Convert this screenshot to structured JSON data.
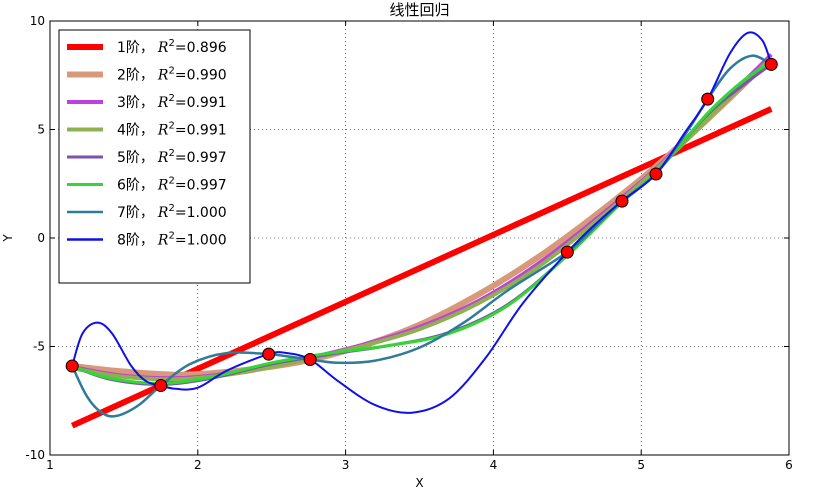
{
  "chart_data": {
    "type": "line",
    "title": "线性回归",
    "xlabel": "X",
    "ylabel": "Y",
    "xlim": [
      1,
      6
    ],
    "ylim": [
      -10,
      10
    ],
    "xticks": [
      1,
      2,
      3,
      4,
      5,
      6
    ],
    "yticks": [
      -10,
      -5,
      0,
      5,
      10
    ],
    "grid": true,
    "legend_placement": "top-left",
    "points": {
      "color": "#ff0000",
      "x": [
        1.15,
        1.75,
        2.48,
        2.76,
        4.5,
        4.87,
        5.1,
        5.45,
        5.88
      ],
      "y": [
        -5.9,
        -6.8,
        -5.35,
        -5.6,
        -0.65,
        1.7,
        2.95,
        6.4,
        8.0
      ]
    },
    "series": [
      {
        "name": "1阶",
        "r2": "0.896",
        "color": "#ff0000",
        "width": 6,
        "x": [
          1.15,
          5.88
        ],
        "y": [
          -8.65,
          5.95
        ]
      },
      {
        "name": "2阶",
        "r2": "0.990",
        "color": "#d8987a",
        "width": 6,
        "x": [
          1.15,
          1.5,
          1.9,
          2.3,
          2.7,
          3.1,
          3.5,
          3.9,
          4.3,
          4.7,
          5.1,
          5.5,
          5.88
        ],
        "y": [
          -5.9,
          -6.15,
          -6.3,
          -6.1,
          -5.7,
          -5.0,
          -4.0,
          -2.6,
          -0.9,
          1.1,
          3.3,
          5.8,
          8.3
        ]
      },
      {
        "name": "3阶",
        "r2": "0.991",
        "color": "#bf40dc",
        "width": 4,
        "x": [
          1.15,
          1.5,
          1.9,
          2.3,
          2.7,
          3.1,
          3.5,
          3.9,
          4.3,
          4.7,
          5.1,
          5.5,
          5.88
        ],
        "y": [
          -5.95,
          -6.35,
          -6.45,
          -6.15,
          -5.6,
          -4.95,
          -4.1,
          -2.9,
          -1.2,
          0.9,
          3.2,
          5.9,
          8.45
        ]
      },
      {
        "name": "4阶",
        "r2": "0.991",
        "color": "#8fb050",
        "width": 4,
        "x": [
          1.15,
          1.5,
          1.9,
          2.3,
          2.7,
          3.1,
          3.5,
          3.9,
          4.3,
          4.7,
          5.1,
          5.5,
          5.88
        ],
        "y": [
          -6.0,
          -6.4,
          -6.5,
          -6.2,
          -5.65,
          -5.0,
          -4.2,
          -3.0,
          -1.35,
          0.8,
          3.15,
          5.8,
          8.3
        ]
      },
      {
        "name": "5阶",
        "r2": "0.997",
        "color": "#7a52b2",
        "width": 3,
        "x": [
          1.15,
          1.4,
          1.75,
          2.1,
          2.5,
          2.9,
          3.3,
          3.7,
          4.1,
          4.5,
          4.87,
          5.1,
          5.45,
          5.7,
          5.88
        ],
        "y": [
          -5.9,
          -6.5,
          -6.75,
          -6.45,
          -5.8,
          -5.35,
          -4.95,
          -4.35,
          -3.05,
          -0.8,
          1.65,
          3.0,
          5.7,
          7.1,
          8.0
        ]
      },
      {
        "name": "6阶",
        "r2": "0.997",
        "color": "#33d633",
        "width": 3,
        "x": [
          1.15,
          1.4,
          1.75,
          2.1,
          2.5,
          2.9,
          3.3,
          3.7,
          4.1,
          4.5,
          4.87,
          5.1,
          5.45,
          5.7,
          5.88
        ],
        "y": [
          -5.9,
          -6.45,
          -6.7,
          -6.4,
          -5.75,
          -5.3,
          -4.95,
          -4.4,
          -3.1,
          -0.8,
          1.65,
          3.0,
          5.75,
          7.3,
          8.1
        ]
      },
      {
        "name": "7阶",
        "r2": "1.000",
        "color": "#2f7b9a",
        "width": 2.5,
        "x": [
          1.15,
          1.25,
          1.35,
          1.45,
          1.6,
          1.75,
          1.95,
          2.2,
          2.48,
          2.6,
          2.76,
          2.95,
          3.2,
          3.5,
          3.8,
          4.1,
          4.5,
          4.7,
          4.87,
          5.1,
          5.3,
          5.45,
          5.6,
          5.75,
          5.88
        ],
        "y": [
          -5.9,
          -7.3,
          -8.05,
          -8.2,
          -7.7,
          -6.8,
          -5.8,
          -5.3,
          -5.35,
          -5.45,
          -5.6,
          -5.75,
          -5.65,
          -5.05,
          -3.9,
          -2.4,
          -0.65,
          0.6,
          1.7,
          2.95,
          4.8,
          6.4,
          7.8,
          8.4,
          8.0
        ]
      },
      {
        "name": "8阶",
        "r2": "1.000",
        "color": "#1010e8",
        "width": 2,
        "x": [
          1.15,
          1.22,
          1.32,
          1.42,
          1.55,
          1.65,
          1.75,
          1.85,
          2.0,
          2.2,
          2.48,
          2.6,
          2.76,
          2.95,
          3.2,
          3.45,
          3.7,
          3.95,
          4.2,
          4.5,
          4.7,
          4.87,
          5.1,
          5.3,
          5.45,
          5.6,
          5.72,
          5.82,
          5.88
        ],
        "y": [
          -5.9,
          -4.4,
          -3.9,
          -4.4,
          -5.9,
          -6.6,
          -6.8,
          -6.95,
          -6.9,
          -6.1,
          -5.35,
          -5.3,
          -5.6,
          -6.6,
          -7.7,
          -8.05,
          -7.4,
          -5.5,
          -3.0,
          -0.65,
          0.7,
          1.7,
          2.95,
          4.9,
          6.4,
          8.5,
          9.45,
          9.1,
          8.0
        ]
      }
    ]
  }
}
